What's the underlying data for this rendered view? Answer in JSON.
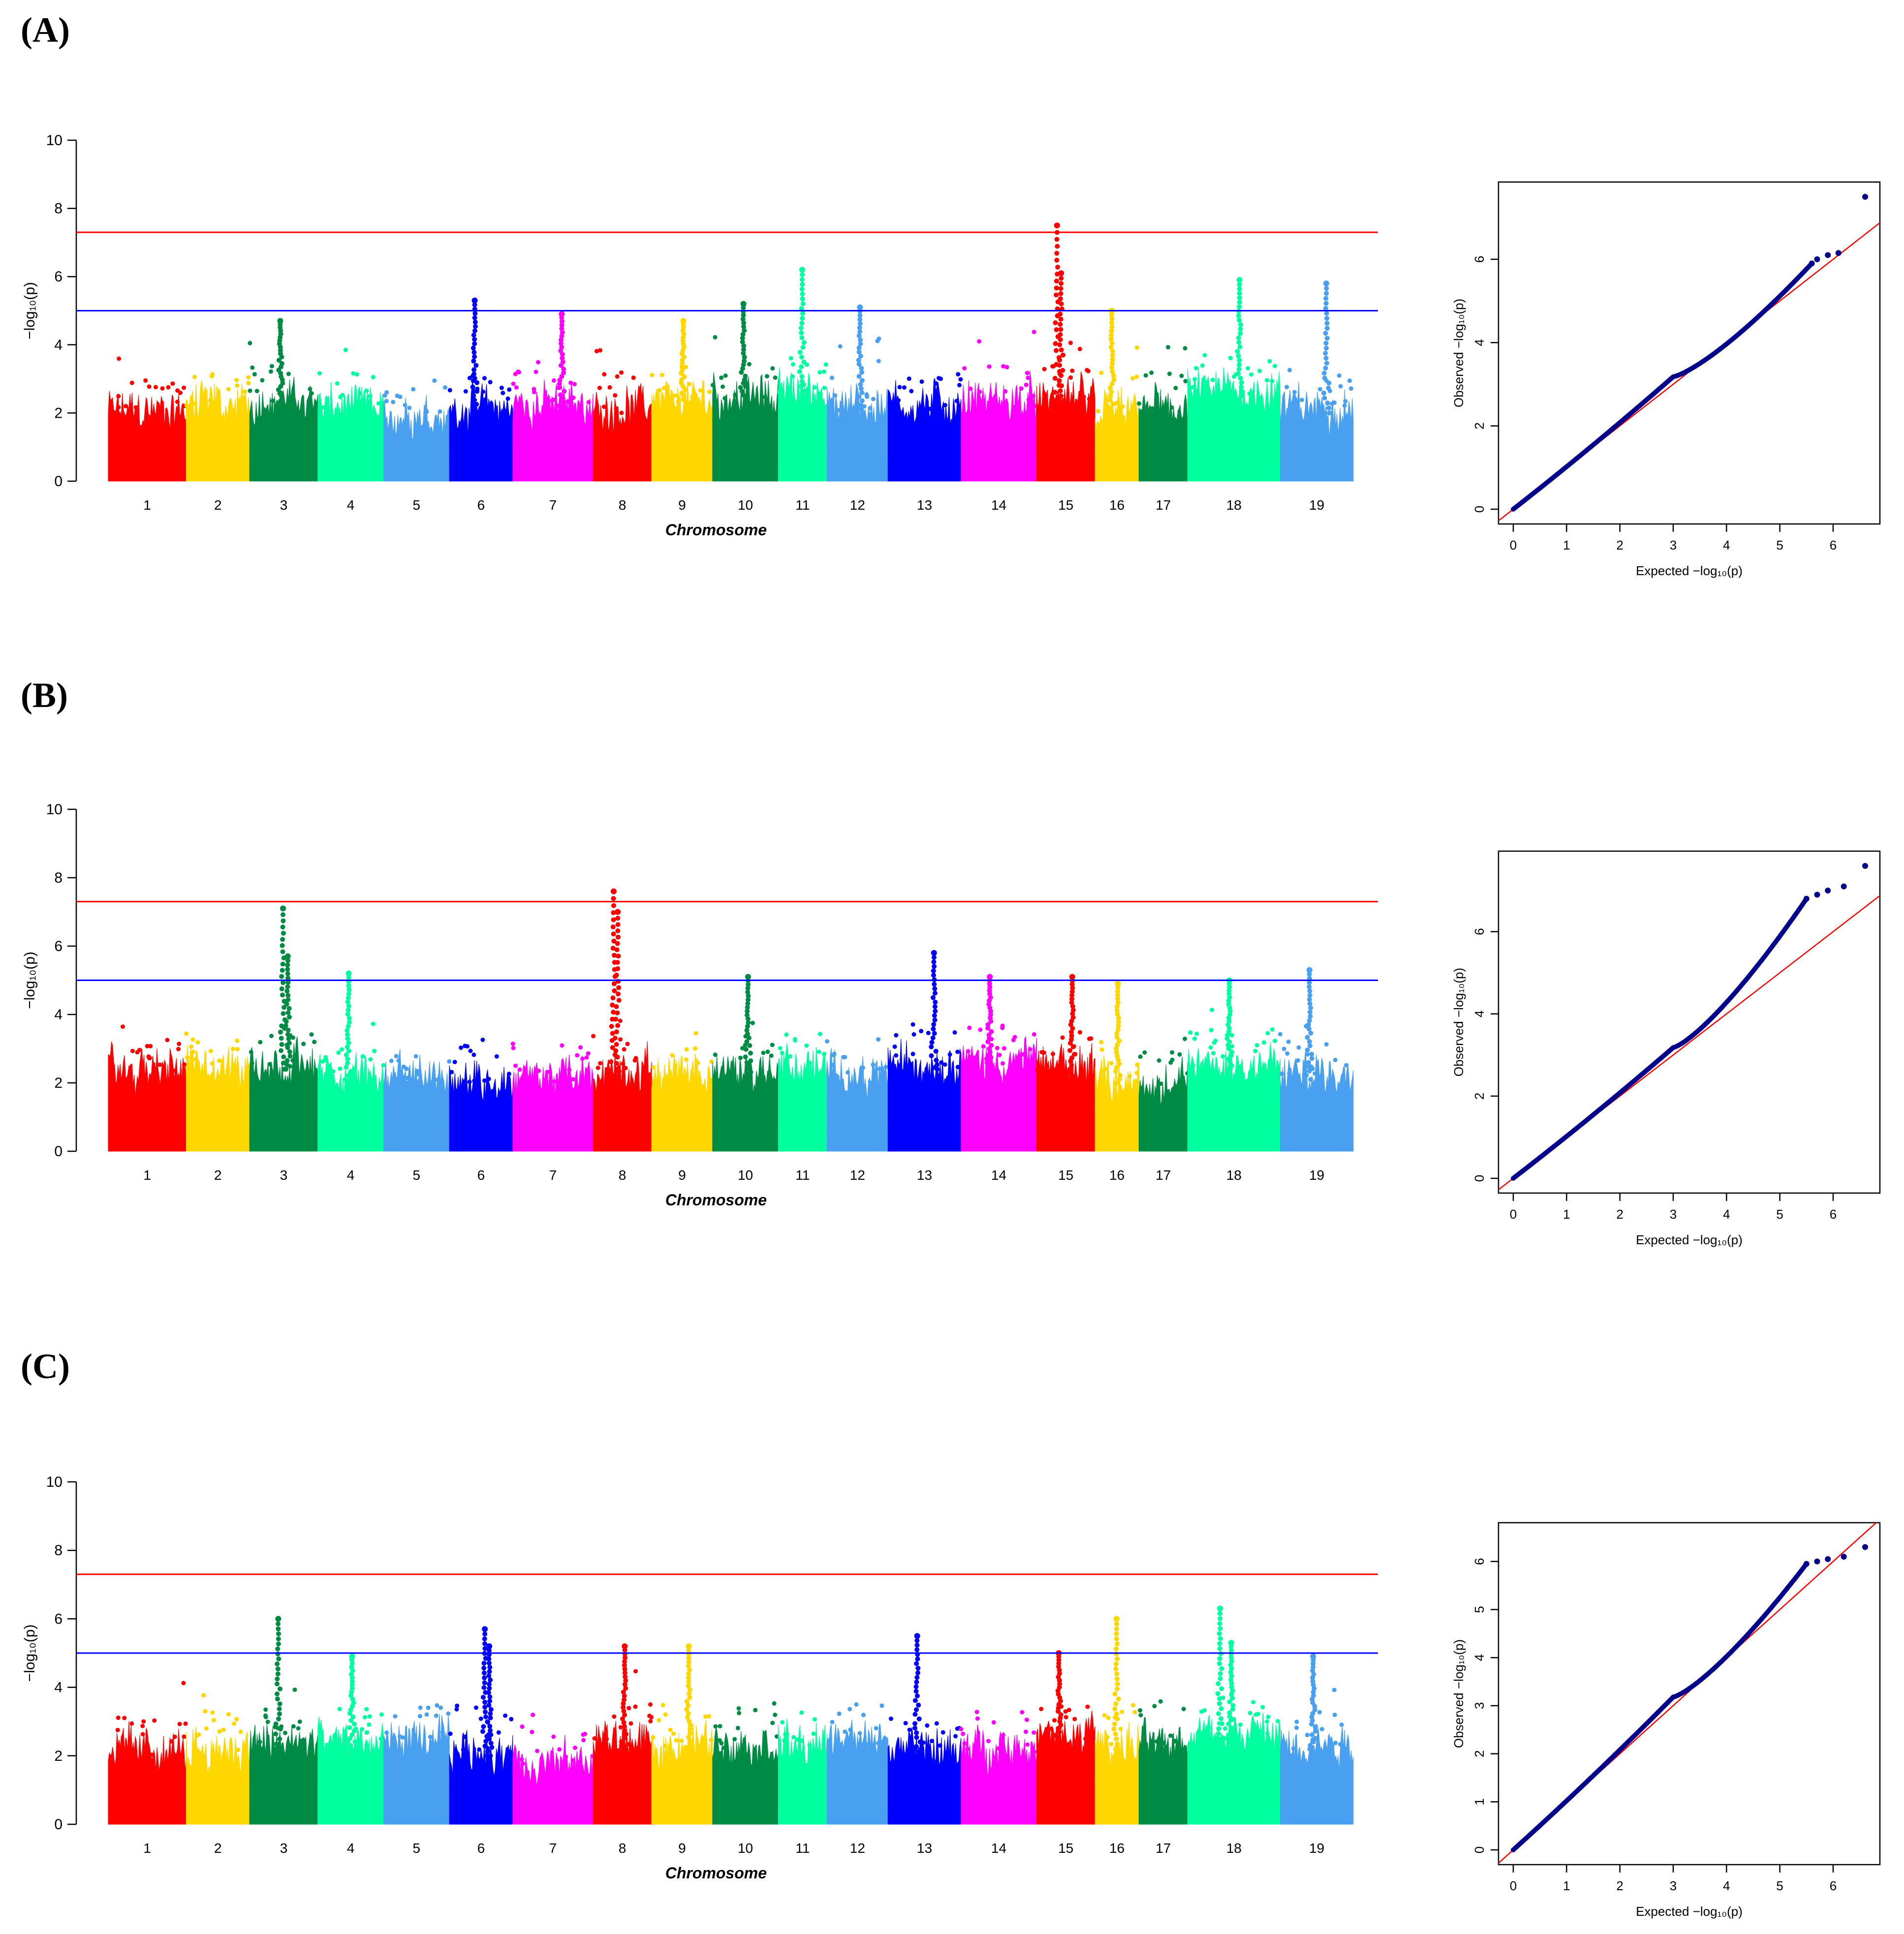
{
  "panel_labels": [
    "(A)",
    "(B)",
    "(C)"
  ],
  "colors": [
    "#ff0000",
    "#ffd700",
    "#008b45",
    "#00ff9f",
    "#4aa0f0",
    "#0000ff",
    "#ff00ff"
  ],
  "threshold_colors": {
    "genome_wide": "#ff0000",
    "suggestive": "#0000ff"
  },
  "qq_colors": {
    "points": "#00008b",
    "line": "#ff0000"
  },
  "chart_data": [
    {
      "type": "scatter",
      "subtype": "manhattan",
      "xlabel": "Chromosome",
      "ylabel": "−log₁₀(p)",
      "ylim": [
        0,
        10
      ],
      "yticks": [
        "0",
        "2",
        "4",
        "6",
        "8",
        "10"
      ],
      "thresholds": [
        7.3,
        5.0
      ],
      "chromosomes": [
        "1",
        "2",
        "3",
        "4",
        "5",
        "6",
        "7",
        "8",
        "9",
        "10",
        "11",
        "12",
        "13",
        "14",
        "15",
        "16",
        "17",
        "18",
        "19"
      ],
      "chrom_base": [
        1.9,
        2.1,
        2.2,
        2.0,
        1.8,
        2.0,
        2.1,
        2.0,
        2.2,
        2.3,
        2.5,
        2.0,
        2.1,
        2.2,
        2.2,
        1.9,
        2.0,
        2.5,
        2.0
      ],
      "peaks": [
        {
          "chrom": 15,
          "value": 7.5
        },
        {
          "chrom": 15,
          "value": 6.1
        },
        {
          "chrom": 11,
          "value": 6.2
        },
        {
          "chrom": 18,
          "value": 5.9
        },
        {
          "chrom": 19,
          "value": 5.8
        },
        {
          "chrom": 6,
          "value": 5.3
        },
        {
          "chrom": 10,
          "value": 5.2
        },
        {
          "chrom": 12,
          "value": 5.1
        },
        {
          "chrom": 7,
          "value": 4.9
        },
        {
          "chrom": 16,
          "value": 5.0
        },
        {
          "chrom": 3,
          "value": 4.7
        },
        {
          "chrom": 9,
          "value": 4.7
        }
      ]
    },
    {
      "type": "scatter",
      "subtype": "qq",
      "xlabel": "Expected −log₁₀(p)",
      "ylabel": "Observed −log₁₀(p)",
      "xlim": [
        0,
        6.6
      ],
      "ylim": [
        0,
        7.5
      ],
      "xticks": [
        "0",
        "1",
        "2",
        "3",
        "4",
        "5",
        "6"
      ],
      "yticks": [
        "0",
        "2",
        "4",
        "6"
      ],
      "top_points": [
        [
          5.6,
          5.9
        ],
        [
          5.7,
          6.0
        ],
        [
          5.9,
          6.1
        ],
        [
          6.1,
          6.15
        ],
        [
          6.6,
          7.5
        ]
      ]
    },
    {
      "type": "scatter",
      "subtype": "manhattan",
      "xlabel": "Chromosome",
      "ylabel": "−log₁₀(p)",
      "ylim": [
        0,
        10
      ],
      "yticks": [
        "0",
        "2",
        "4",
        "6",
        "8",
        "10"
      ],
      "thresholds": [
        7.3,
        5.0
      ],
      "chromosomes": [
        "1",
        "2",
        "3",
        "4",
        "5",
        "6",
        "7",
        "8",
        "9",
        "10",
        "11",
        "12",
        "13",
        "14",
        "15",
        "16",
        "17",
        "18",
        "19"
      ],
      "chrom_base": [
        2.2,
        2.3,
        2.4,
        2.1,
        2.0,
        1.9,
        2.0,
        2.2,
        2.0,
        2.2,
        2.3,
        2.1,
        2.4,
        2.5,
        2.3,
        2.0,
        1.8,
        2.4,
        2.1
      ],
      "peaks": [
        {
          "chrom": 8,
          "value": 7.6
        },
        {
          "chrom": 8,
          "value": 7.0
        },
        {
          "chrom": 3,
          "value": 7.1
        },
        {
          "chrom": 3,
          "value": 5.7
        },
        {
          "chrom": 13,
          "value": 5.8
        },
        {
          "chrom": 19,
          "value": 5.3
        },
        {
          "chrom": 4,
          "value": 5.2
        },
        {
          "chrom": 10,
          "value": 5.1
        },
        {
          "chrom": 15,
          "value": 5.1
        },
        {
          "chrom": 14,
          "value": 5.1
        },
        {
          "chrom": 18,
          "value": 5.0
        },
        {
          "chrom": 16,
          "value": 4.9
        }
      ]
    },
    {
      "type": "scatter",
      "subtype": "qq",
      "xlabel": "Expected −log₁₀(p)",
      "ylabel": "Observed −log₁₀(p)",
      "xlim": [
        0,
        6.6
      ],
      "ylim": [
        0,
        7.6
      ],
      "xticks": [
        "0",
        "1",
        "2",
        "3",
        "4",
        "5",
        "6"
      ],
      "yticks": [
        "0",
        "2",
        "4",
        "6"
      ],
      "top_points": [
        [
          5.5,
          6.8
        ],
        [
          5.7,
          6.9
        ],
        [
          5.9,
          7.0
        ],
        [
          6.2,
          7.1
        ],
        [
          6.6,
          7.6
        ]
      ]
    },
    {
      "type": "scatter",
      "subtype": "manhattan",
      "xlabel": "Chromosome",
      "ylabel": "−log₁₀(p)",
      "ylim": [
        0,
        10
      ],
      "yticks": [
        "0",
        "2",
        "4",
        "6",
        "8",
        "10"
      ],
      "thresholds": [
        7.3,
        5.0
      ],
      "chromosomes": [
        "1",
        "2",
        "3",
        "4",
        "5",
        "6",
        "7",
        "8",
        "9",
        "10",
        "11",
        "12",
        "13",
        "14",
        "15",
        "16",
        "17",
        "18",
        "19"
      ],
      "chrom_base": [
        2.0,
        2.1,
        2.2,
        2.2,
        2.3,
        2.0,
        1.6,
        2.3,
        2.2,
        2.2,
        2.1,
        2.3,
        2.0,
        2.1,
        2.4,
        2.2,
        2.3,
        2.5,
        2.2
      ],
      "peaks": [
        {
          "chrom": 18,
          "value": 6.3
        },
        {
          "chrom": 3,
          "value": 6.0
        },
        {
          "chrom": 16,
          "value": 6.0
        },
        {
          "chrom": 6,
          "value": 5.7
        },
        {
          "chrom": 6,
          "value": 5.2
        },
        {
          "chrom": 13,
          "value": 5.5
        },
        {
          "chrom": 18,
          "value": 5.3
        },
        {
          "chrom": 8,
          "value": 5.2
        },
        {
          "chrom": 9,
          "value": 5.2
        },
        {
          "chrom": 15,
          "value": 5.0
        },
        {
          "chrom": 19,
          "value": 4.9
        },
        {
          "chrom": 4,
          "value": 4.9
        }
      ]
    },
    {
      "type": "scatter",
      "subtype": "qq",
      "xlabel": "Expected −log₁₀(p)",
      "ylabel": "Observed −log₁₀(p)",
      "xlim": [
        0,
        6.6
      ],
      "ylim": [
        0,
        6.5
      ],
      "xticks": [
        "0",
        "1",
        "2",
        "3",
        "4",
        "5",
        "6"
      ],
      "yticks": [
        "0",
        "1",
        "2",
        "3",
        "4",
        "5",
        "6"
      ],
      "top_points": [
        [
          5.5,
          5.95
        ],
        [
          5.7,
          6.0
        ],
        [
          5.9,
          6.05
        ],
        [
          6.2,
          6.1
        ],
        [
          6.6,
          6.3
        ]
      ]
    }
  ]
}
